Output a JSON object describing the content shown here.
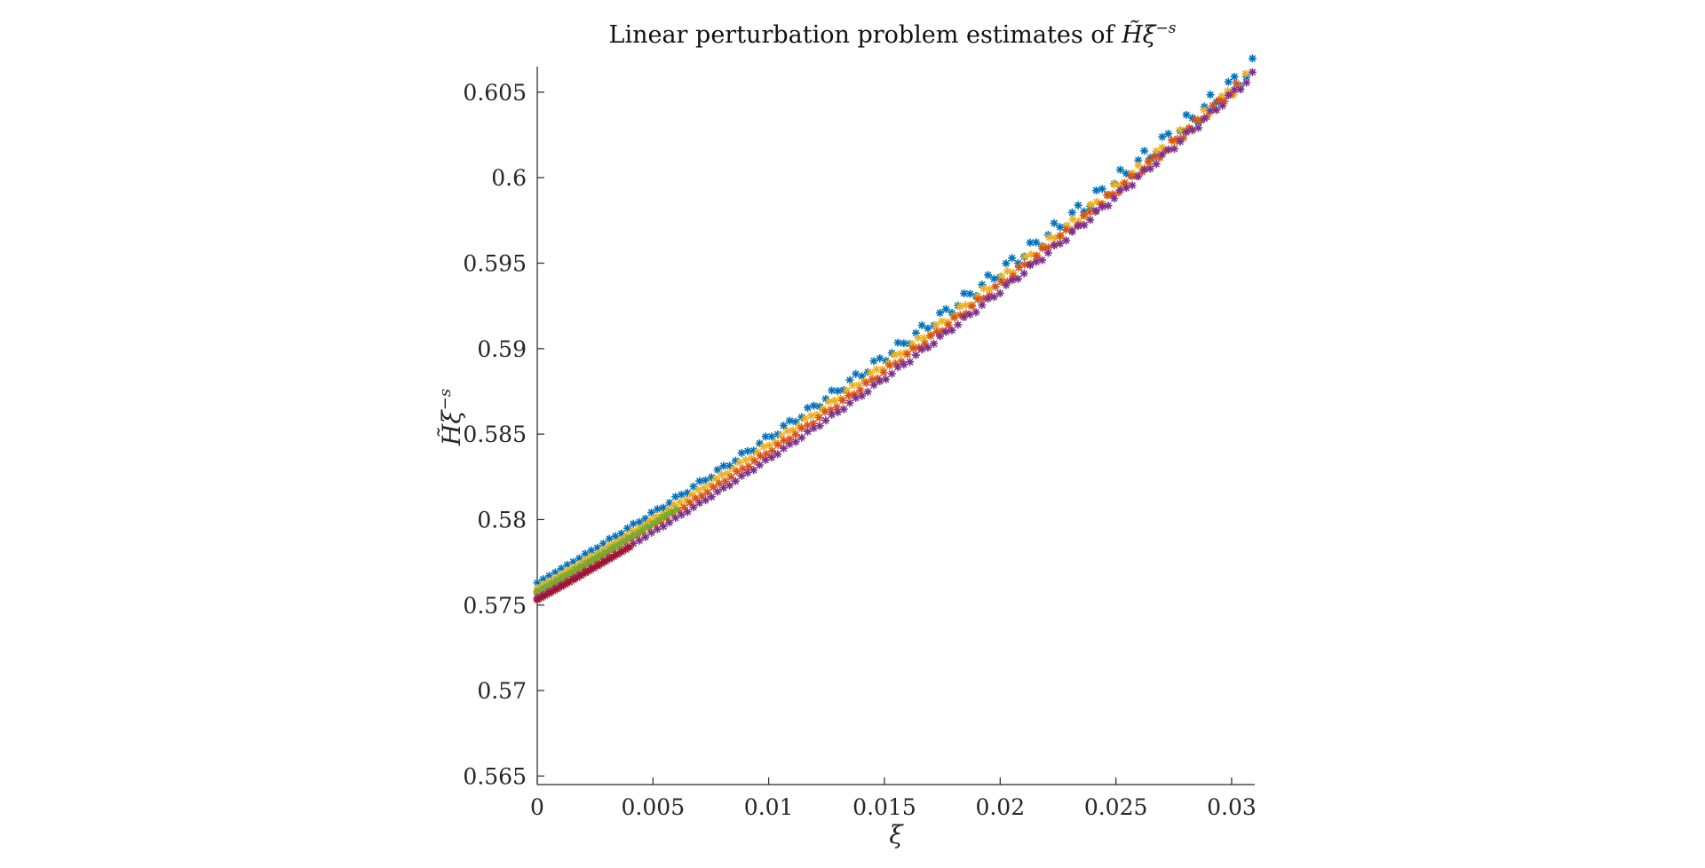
{
  "chart_data": {
    "type": "scatter",
    "title_text": "Linear perturbation problem estimates of ",
    "title_math": "H̃ξ",
    "title_sup": "−s",
    "ylabel": "H̃ξ",
    "ylabel_sup": "−s",
    "xlabel": "ξ",
    "xlim": [
      0,
      0.031
    ],
    "ylim": [
      0.5645,
      0.6065
    ],
    "xticks": [
      0,
      0.005,
      0.01,
      0.015,
      0.02,
      0.025,
      0.03
    ],
    "xtick_labels": [
      "0",
      "0.005",
      "0.01",
      "0.015",
      "0.02",
      "0.025",
      "0.03"
    ],
    "yticks": [
      0.565,
      0.57,
      0.575,
      0.58,
      0.585,
      0.59,
      0.595,
      0.6,
      0.605
    ],
    "ytick_labels": [
      "0.565",
      "0.57",
      "0.575",
      "0.58",
      "0.585",
      "0.59",
      "0.595",
      "0.6",
      "0.605"
    ],
    "grid": false,
    "marker": "asterisk",
    "series": [
      {
        "color": "#0072BD",
        "x_start": 0.0,
        "x_end": 0.0309,
        "n": 120,
        "y0": 0.5763,
        "slope": 0.79,
        "curv": 6.0,
        "wobble": 0.00055
      },
      {
        "color": "#EDB120",
        "x_start": 0.0,
        "x_end": 0.0306,
        "n": 120,
        "y0": 0.576,
        "slope": 0.77,
        "curv": 6.6,
        "wobble": 0.00035
      },
      {
        "color": "#D95319",
        "x_start": 0.0,
        "x_end": 0.0302,
        "n": 120,
        "y0": 0.5757,
        "slope": 0.75,
        "curv": 7.6,
        "wobble": 0.00025
      },
      {
        "color": "#77AC30",
        "x_start": 0.0,
        "x_end": 0.006,
        "n": 30,
        "y0": 0.5758,
        "slope": 0.76,
        "curv": 7.0,
        "wobble": 0.0001
      },
      {
        "color": "#7E2F8E",
        "x_start": 0.0,
        "x_end": 0.0309,
        "n": 120,
        "y0": 0.5754,
        "slope": 0.73,
        "curv": 8.4,
        "wobble": 0.0002
      },
      {
        "color": "#A2142F",
        "x_start": 0.0,
        "x_end": 0.004,
        "n": 24,
        "y0": 0.5753,
        "slope": 0.74,
        "curv": 8.0,
        "wobble": 0.0
      }
    ]
  }
}
